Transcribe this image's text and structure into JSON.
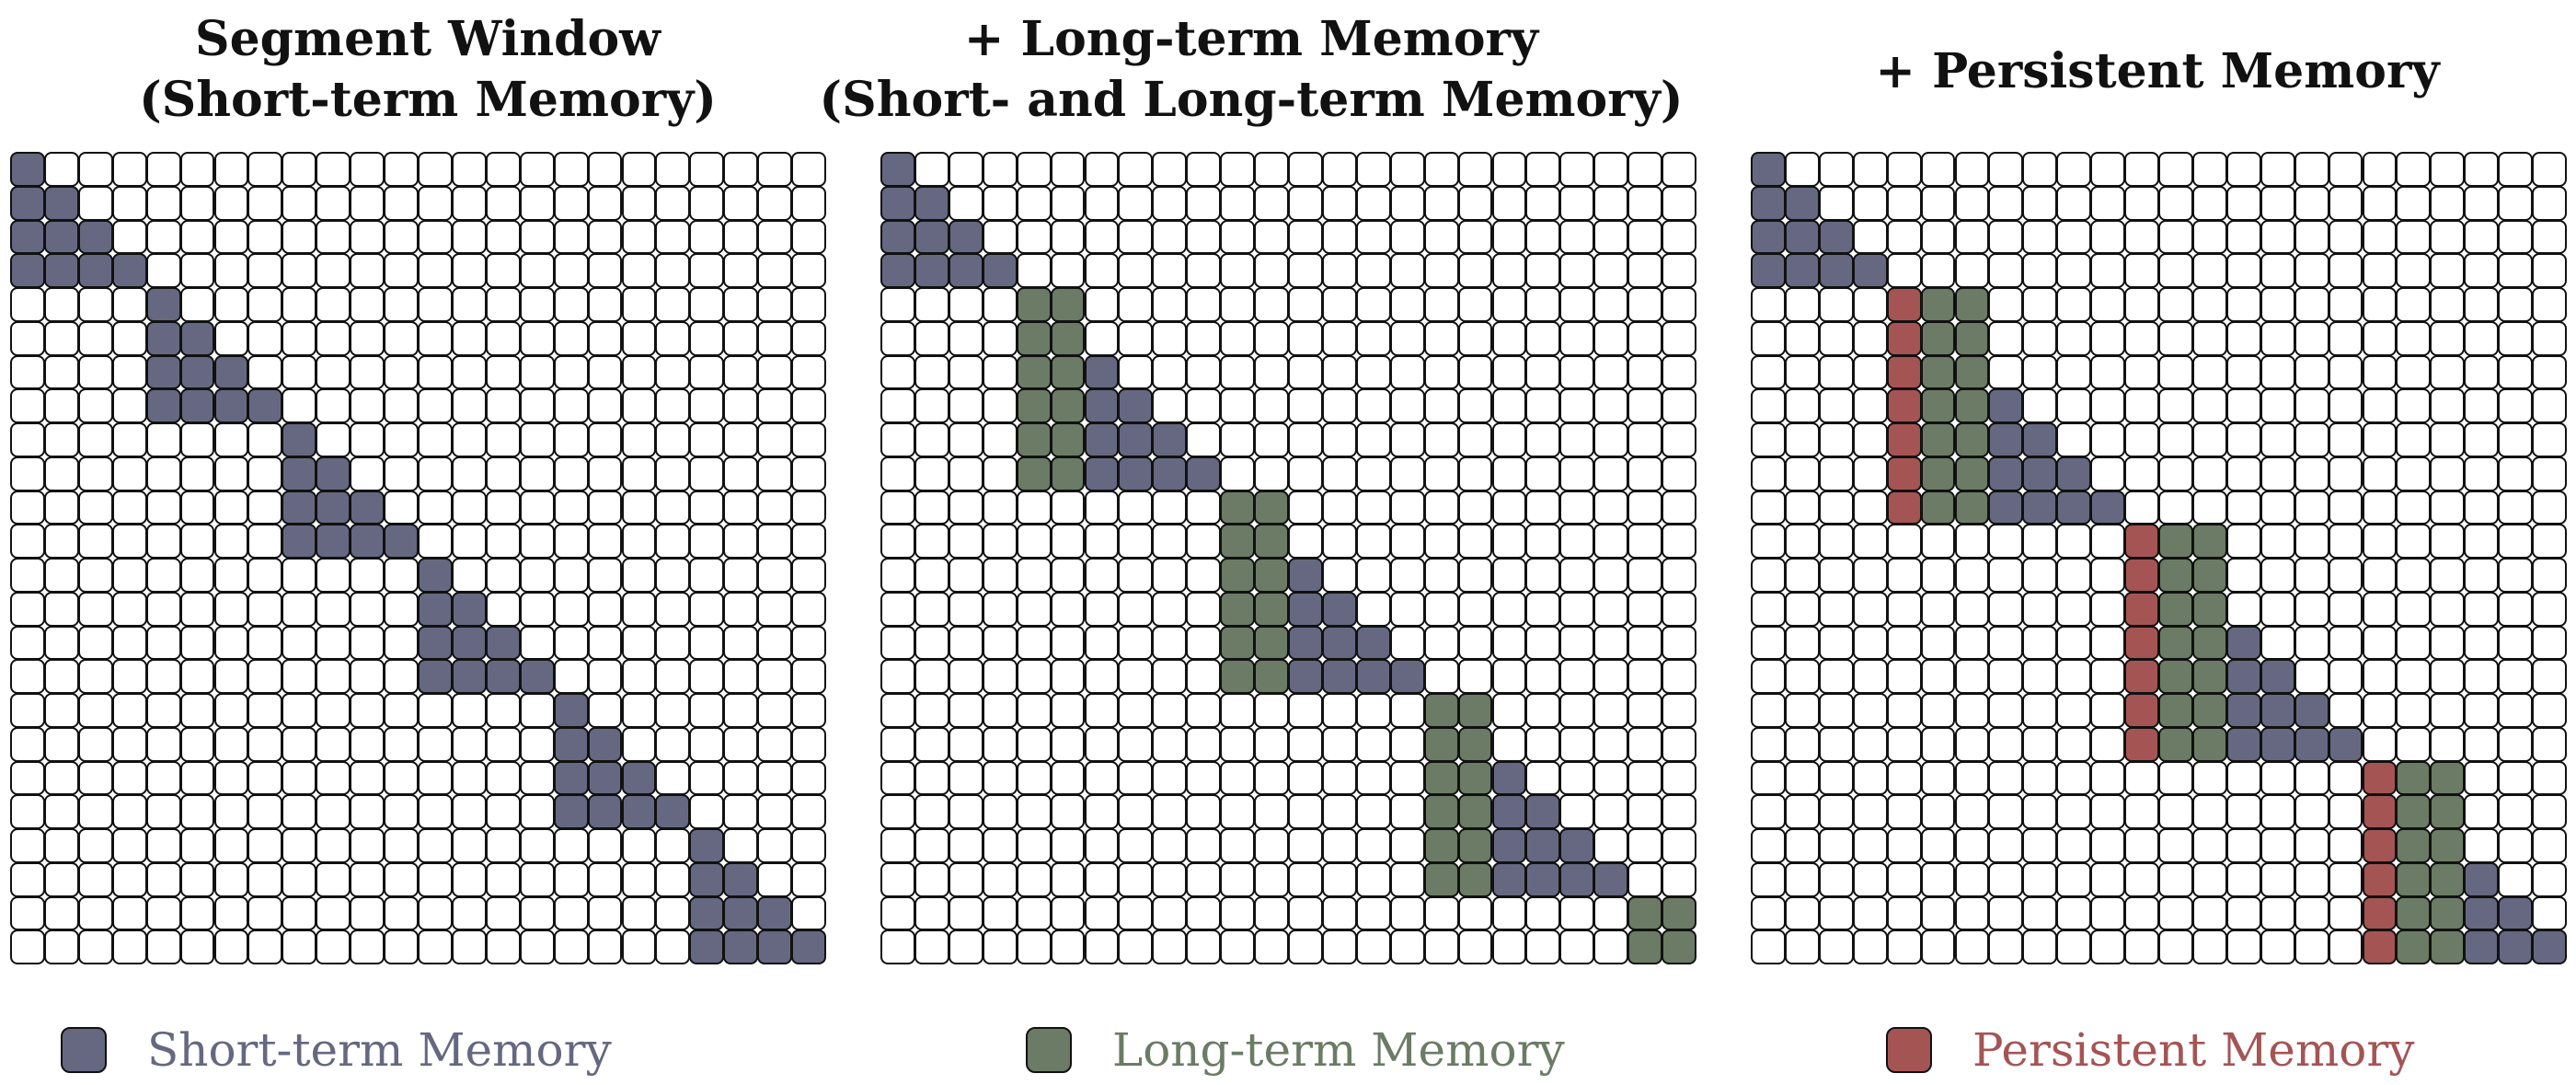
{
  "colors": {
    "short_term": "#656880",
    "long_term": "#6b7b65",
    "persistent": "#a55454",
    "empty": "#ffffff"
  },
  "grid_size": 24,
  "panels": [
    {
      "title": "Segment Window\n(Short-term Memory)",
      "segments": [
        {
          "start": 0,
          "end": 3,
          "short_term": true,
          "long_term_cols": [],
          "persistent_cols": []
        },
        {
          "start": 4,
          "end": 7,
          "short_term": true,
          "long_term_cols": [],
          "persistent_cols": []
        },
        {
          "start": 8,
          "end": 11,
          "short_term": true,
          "long_term_cols": [],
          "persistent_cols": []
        },
        {
          "start": 12,
          "end": 15,
          "short_term": true,
          "long_term_cols": [],
          "persistent_cols": []
        },
        {
          "start": 16,
          "end": 19,
          "short_term": true,
          "long_term_cols": [],
          "persistent_cols": []
        },
        {
          "start": 20,
          "end": 23,
          "short_term": true,
          "long_term_cols": [],
          "persistent_cols": []
        }
      ]
    },
    {
      "title": "+ Long-term Memory\n(Short- and Long-term Memory)",
      "segments": [
        {
          "start": 0,
          "end": 3,
          "short_term": true,
          "long_term_cols": [],
          "persistent_cols": []
        },
        {
          "start": 4,
          "end": 9,
          "short_term": true,
          "long_term_cols": [
            4,
            5
          ],
          "persistent_cols": []
        },
        {
          "start": 10,
          "end": 15,
          "short_term": true,
          "long_term_cols": [
            10,
            11
          ],
          "persistent_cols": []
        },
        {
          "start": 16,
          "end": 21,
          "short_term": true,
          "long_term_cols": [
            16,
            17
          ],
          "persistent_cols": []
        },
        {
          "start": 22,
          "end": 23,
          "short_term": false,
          "long_term_cols": [
            22,
            23
          ],
          "persistent_cols": []
        }
      ]
    },
    {
      "title": "+ Persistent Memory",
      "segments": [
        {
          "start": 0,
          "end": 3,
          "short_term": true,
          "long_term_cols": [],
          "persistent_cols": []
        },
        {
          "start": 4,
          "end": 10,
          "short_term": true,
          "long_term_cols": [
            5,
            6
          ],
          "persistent_cols": [
            4
          ]
        },
        {
          "start": 11,
          "end": 17,
          "short_term": true,
          "long_term_cols": [
            12,
            13
          ],
          "persistent_cols": [
            11
          ]
        },
        {
          "start": 18,
          "end": 23,
          "short_term": true,
          "long_term_cols": [
            19,
            20
          ],
          "persistent_cols": [
            18
          ]
        }
      ]
    }
  ],
  "legend": [
    {
      "label": "Short-term Memory",
      "color": "#656880"
    },
    {
      "label": "Long-term Memory",
      "color": "#6b7b65"
    },
    {
      "label": "Persistent Memory",
      "color": "#a55454"
    }
  ]
}
